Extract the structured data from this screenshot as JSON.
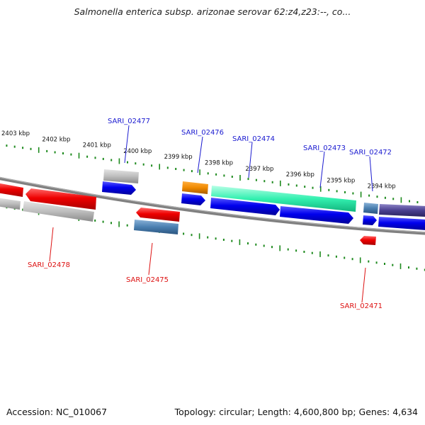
{
  "title": "Salmonella enterica subsp. arizonae serovar 62:z4,z23:--, co...",
  "footer": {
    "accession": "Accession: NC_010067",
    "topology": "Topology: circular; Length: 4,600,800 bp; Genes: 4,634"
  },
  "colors": {
    "tick": "#1e8a1e",
    "backbone": "#808080",
    "label_forward": "#1a1ad0",
    "label_reverse": "#dd1111"
  },
  "scale_labels": [
    "2403 kbp",
    "2402 kbp",
    "2401 kbp",
    "2400 kbp",
    "2399 kbp",
    "2398 kbp",
    "2397 kbp",
    "2396 kbp",
    "2395 kbp",
    "2394 kbp"
  ],
  "gene_labels_top": [
    "SARI_02477",
    "SARI_02476",
    "SARI_02474",
    "SARI_02473",
    "SARI_02472"
  ],
  "gene_labels_bottom": [
    "SARI_02478",
    "SARI_02475",
    "SARI_02471"
  ]
}
